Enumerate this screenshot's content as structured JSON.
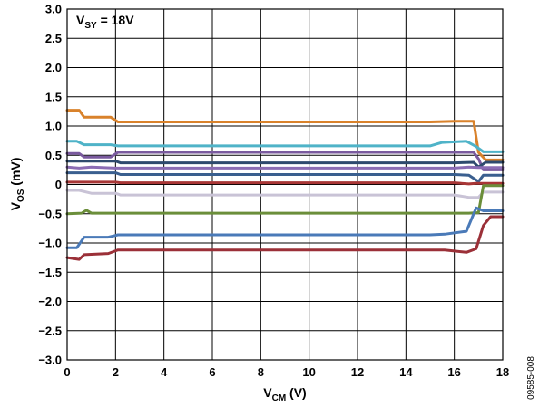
{
  "chart_data": {
    "type": "line",
    "annotation": {
      "main": "V",
      "sub": "SY",
      "rest": " = 18V"
    },
    "xlabel": {
      "main": "V",
      "sub": "CM",
      "rest": " (V)"
    },
    "ylabel": {
      "main": "V",
      "sub": "OS",
      "rest": " (mV)"
    },
    "xlim": [
      0,
      18
    ],
    "ylim": [
      -3.0,
      3.0
    ],
    "xticks": [
      "0",
      "2",
      "4",
      "6",
      "8",
      "10",
      "12",
      "14",
      "16",
      "18"
    ],
    "yticks": [
      "3.0",
      "2.5",
      "2.0",
      "1.5",
      "1.0",
      "0.5",
      "0",
      "−0.5",
      "−1.0",
      "−1.5",
      "−2.0",
      "−2.5",
      "−3.0"
    ],
    "grid": true,
    "figure_id": "09585-008",
    "series": [
      {
        "color": "#d9822b",
        "x": [
          0,
          0.5,
          0.7,
          1.8,
          2.1,
          15,
          16.0,
          16.8,
          17.0,
          17.3,
          18
        ],
        "y": [
          1.27,
          1.27,
          1.15,
          1.15,
          1.07,
          1.07,
          1.08,
          1.08,
          0.55,
          0.42,
          0.42
        ]
      },
      {
        "color": "#4fb3c8",
        "x": [
          0,
          0.4,
          0.7,
          1.8,
          2.1,
          15,
          15.5,
          16.5,
          16.9,
          17.2,
          18
        ],
        "y": [
          0.74,
          0.74,
          0.68,
          0.68,
          0.66,
          0.66,
          0.72,
          0.74,
          0.65,
          0.56,
          0.56
        ]
      },
      {
        "color": "#7a5a9e",
        "x": [
          0,
          0.5,
          0.7,
          1.8,
          2.1,
          16.0,
          16.8,
          17.0,
          17.2,
          18
        ],
        "y": [
          0.53,
          0.53,
          0.47,
          0.47,
          0.55,
          0.55,
          0.55,
          0.44,
          0.25,
          0.25
        ]
      },
      {
        "color": "#2e4a6e",
        "x": [
          0,
          2,
          2.2,
          16.0,
          16.8,
          17.0,
          17.3,
          18
        ],
        "y": [
          0.4,
          0.4,
          0.37,
          0.37,
          0.38,
          0.3,
          0.38,
          0.38
        ]
      },
      {
        "color": "#8b6cb4",
        "x": [
          0,
          0.5,
          1.0,
          2.0,
          2.2,
          16.0,
          16.6,
          17.0,
          18
        ],
        "y": [
          0.3,
          0.28,
          0.3,
          0.28,
          0.28,
          0.28,
          0.3,
          0.29,
          0.29
        ]
      },
      {
        "color": "#3a5f8f",
        "x": [
          0,
          2,
          2.2,
          16.0,
          16.6,
          17.0,
          17.2,
          18
        ],
        "y": [
          0.2,
          0.2,
          0.17,
          0.17,
          0.16,
          0.05,
          0.16,
          0.16
        ]
      },
      {
        "color": "#a83636",
        "x": [
          0,
          2,
          2.2,
          16.0,
          16.6,
          16.9,
          18
        ],
        "y": [
          0.04,
          0.04,
          0.03,
          0.03,
          0.01,
          0.02,
          0.02
        ]
      },
      {
        "color": "#c9c3d6",
        "x": [
          0,
          0.5,
          1.0,
          2.0,
          2.2,
          16.0,
          16.6,
          17.0,
          17.2,
          18
        ],
        "y": [
          -0.1,
          -0.1,
          -0.15,
          -0.15,
          -0.18,
          -0.18,
          -0.22,
          -0.22,
          -0.13,
          -0.13
        ]
      },
      {
        "color": "#6b8e3a",
        "x": [
          0,
          0.6,
          0.8,
          1.0,
          2.0,
          16.0,
          16.6,
          17.0,
          17.2,
          18
        ],
        "y": [
          -0.5,
          -0.49,
          -0.44,
          -0.49,
          -0.49,
          -0.49,
          -0.49,
          -0.48,
          -0.02,
          -0.02
        ]
      },
      {
        "color": "#4a7ab8",
        "x": [
          0,
          0.4,
          0.7,
          1.7,
          2.1,
          15,
          15.6,
          16.5,
          16.9,
          17.2,
          18
        ],
        "y": [
          -1.08,
          -1.08,
          -0.9,
          -0.9,
          -0.86,
          -0.86,
          -0.85,
          -0.8,
          -0.4,
          -0.45,
          -0.45
        ]
      },
      {
        "color": "#9b3038",
        "x": [
          0,
          0.5,
          0.7,
          1.7,
          2.1,
          15,
          15.6,
          16.5,
          16.9,
          17.2,
          17.5,
          18
        ],
        "y": [
          -1.25,
          -1.28,
          -1.2,
          -1.18,
          -1.12,
          -1.12,
          -1.12,
          -1.16,
          -1.1,
          -0.7,
          -0.55,
          -0.55
        ]
      }
    ]
  }
}
